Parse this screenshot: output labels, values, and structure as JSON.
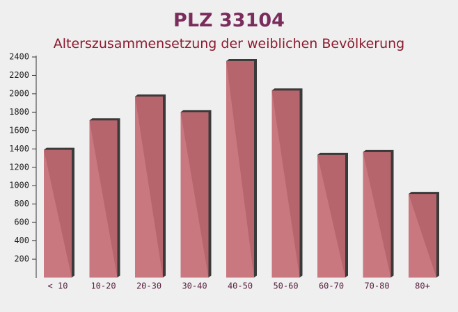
{
  "chart_data": {
    "type": "bar",
    "title": "PLZ 33104",
    "subtitle": "Alterszusammensetzung der weiblichen Bevölkerung",
    "categories": [
      "< 10",
      "10-20",
      "20-30",
      "30-40",
      "40-50",
      "50-60",
      "60-70",
      "70-80",
      "80+"
    ],
    "values": [
      1390,
      1710,
      1970,
      1800,
      2355,
      2035,
      1335,
      1365,
      910
    ],
    "color": "#c46a72",
    "ylim": [
      0,
      2400
    ],
    "yticks": [
      200,
      400,
      600,
      800,
      1000,
      1200,
      1400,
      1600,
      1800,
      2000,
      2200,
      2400
    ]
  }
}
